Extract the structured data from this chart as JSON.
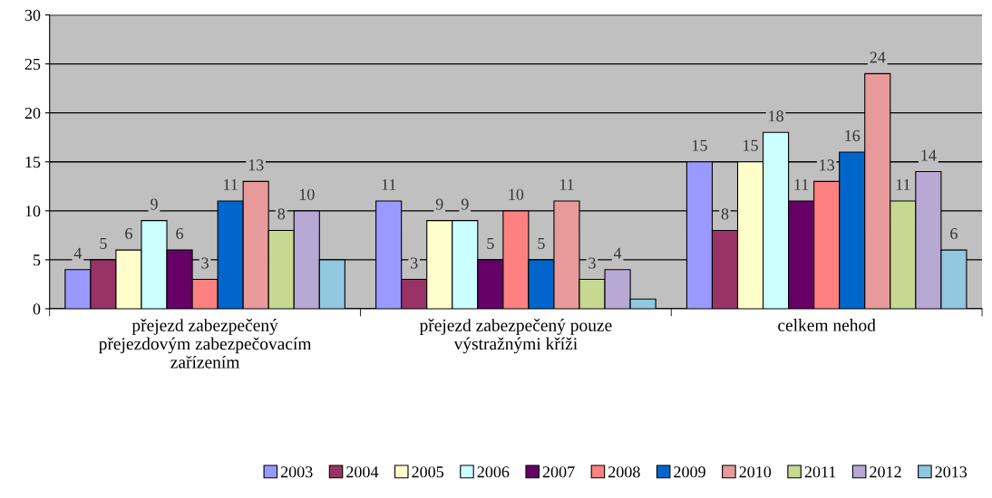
{
  "chart_data": {
    "type": "bar",
    "categories": [
      "přejezd zabezpečený\npřejezdovým zabezpečovacím\nzařízením",
      "přejezd zabezpečený pouze\nvýstražnými kříži",
      "celkem nehod"
    ],
    "ylim": [
      0,
      30
    ],
    "yticks": [
      0,
      5,
      10,
      15,
      20,
      25,
      30
    ],
    "grid": "y",
    "legend": "bottom",
    "series": [
      {
        "name": "2003",
        "color": "#9999ff",
        "values": [
          4,
          11,
          15
        ],
        "value_labels": [
          "4",
          "11",
          "15"
        ]
      },
      {
        "name": "2004",
        "color": "#993366",
        "values": [
          5,
          3,
          8
        ],
        "value_labels": [
          "5",
          "3",
          "8"
        ]
      },
      {
        "name": "2005",
        "color": "#ffffcc",
        "values": [
          6,
          9,
          15
        ],
        "value_labels": [
          "6",
          "9",
          "15"
        ]
      },
      {
        "name": "2006",
        "color": "#ccffff",
        "values": [
          9,
          9,
          18
        ],
        "value_labels": [
          "9",
          "9",
          "18"
        ]
      },
      {
        "name": "2007",
        "color": "#660066",
        "values": [
          6,
          5,
          11
        ],
        "value_labels": [
          "6",
          "5",
          "11"
        ]
      },
      {
        "name": "2008",
        "color": "#ff8080",
        "values": [
          3,
          10,
          13
        ],
        "value_labels": [
          "3",
          "10",
          "13"
        ]
      },
      {
        "name": "2009",
        "color": "#0066cc",
        "values": [
          11,
          5,
          16
        ],
        "value_labels": [
          "11",
          "5",
          "16"
        ]
      },
      {
        "name": "2010",
        "color": "#e89a9a",
        "values": [
          13,
          11,
          24
        ],
        "value_labels": [
          "13",
          "11",
          "24"
        ]
      },
      {
        "name": "2011",
        "color": "#c8d890",
        "values": [
          8,
          3,
          11
        ],
        "value_labels": [
          "8",
          "3",
          "11"
        ]
      },
      {
        "name": "2012",
        "color": "#b8a8d4",
        "values": [
          10,
          4,
          14
        ],
        "value_labels": [
          "10",
          "4",
          "14"
        ]
      },
      {
        "name": "2013",
        "color": "#90c8e0",
        "values": [
          5,
          1,
          6
        ],
        "value_labels": [
          null,
          null,
          "6"
        ]
      }
    ]
  }
}
